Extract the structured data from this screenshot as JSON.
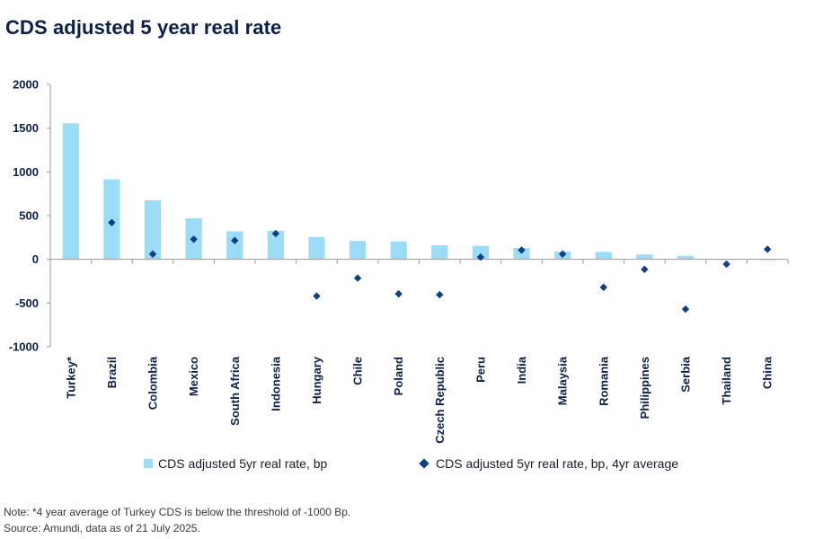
{
  "title": "CDS adjusted 5 year real rate",
  "colors": {
    "bar": "#9bdcf7",
    "diamond": "#0f3f85",
    "axis": "#9a9a9a",
    "text": "#0b1f4d"
  },
  "chart_data": {
    "type": "bar",
    "title": "CDS adjusted 5 year real rate",
    "xlabel": "",
    "ylabel": "",
    "ylim": [
      -1000,
      2000
    ],
    "yticks": [
      2000,
      1500,
      1000,
      500,
      0,
      -500,
      -1000
    ],
    "ytick_labels": [
      "2000",
      "1500",
      "1000",
      "500",
      "0",
      "-500",
      "-1000"
    ],
    "grid": false,
    "legend_position": "bottom",
    "categories": [
      "Turkey*",
      "Brazil",
      "Colombia",
      "Mexico",
      "South Africa",
      "Indonesia",
      "Hungary",
      "Chile",
      "Poland",
      "Czech Republic",
      "Peru",
      "India",
      "Malaysia",
      "Romania",
      "Philippines",
      "Serbia",
      "Thailand",
      "China"
    ],
    "series": [
      {
        "name": "CDS adjusted 5yr real rate, bp",
        "type": "bar",
        "values": [
          1555,
          915,
          675,
          470,
          320,
          325,
          255,
          210,
          205,
          160,
          155,
          130,
          90,
          85,
          55,
          40,
          5,
          -10
        ]
      },
      {
        "name": "CDS adjusted 5yr real rate, bp, 4yr average",
        "type": "scatter",
        "marker": "diamond",
        "values": [
          null,
          420,
          60,
          230,
          215,
          295,
          -420,
          -215,
          -395,
          -405,
          25,
          105,
          60,
          -320,
          -115,
          -570,
          -55,
          115
        ]
      }
    ]
  },
  "footnotes": {
    "note": "Note: *4 year average of Turkey CDS is below the threshold of -1000 Bp.",
    "source": "Source: Amundi, data as of 21 July 2025."
  }
}
